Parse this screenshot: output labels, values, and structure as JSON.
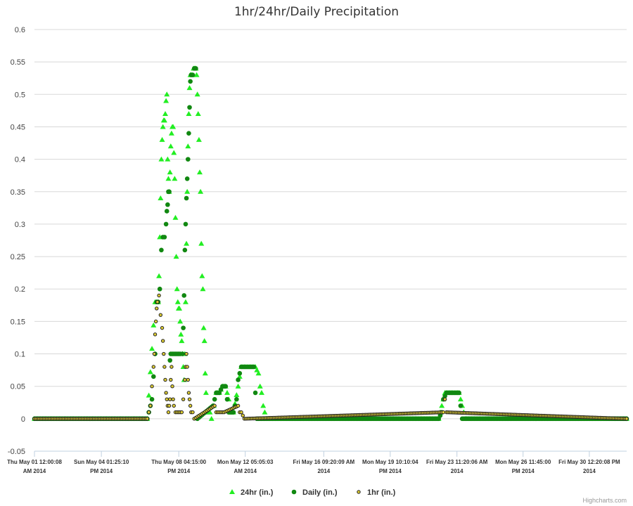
{
  "chart_data": {
    "type": "scatter",
    "title": "1hr/24hr/Daily Precipitation",
    "ylim": [
      -0.05,
      0.6
    ],
    "yticks": [
      "-0.05",
      "0",
      "0.05",
      "0.1",
      "0.15",
      "0.2",
      "0.25",
      "0.3",
      "0.35",
      "0.4",
      "0.45",
      "0.5",
      "0.55",
      "0.6"
    ],
    "xlim": [
      "2014-05-01T00:00:08",
      "2014-06-01T12:00:00"
    ],
    "xticks": [
      {
        "x": "2014-05-01T00:00:08",
        "line1": "Thu May 01 12:00:08",
        "line2": "AM 2014"
      },
      {
        "x": "2014-05-04T13:25:10",
        "line1": "Sun May 04 01:25:10",
        "line2": "PM 2014"
      },
      {
        "x": "2014-05-08T16:15:00",
        "line1": "Thu May 08 04:15:00",
        "line2": "PM 2014"
      },
      {
        "x": "2014-05-12T05:05:03",
        "line1": "Mon May 12 05:05:03",
        "line2": "AM 2014"
      },
      {
        "x": "2014-05-16T09:20:09",
        "line1": "Fri May 16 09:20:09 AM",
        "line2": "2014"
      },
      {
        "x": "2014-05-19T22:10:04",
        "line1": "Mon May 19 10:10:04",
        "line2": "PM 2014"
      },
      {
        "x": "2014-05-23T11:20:06",
        "line1": "Fri May 23 11:20:06 AM",
        "line2": "2014"
      },
      {
        "x": "2014-05-26T23:45:00",
        "line1": "Mon May 26 11:45:00",
        "line2": "PM 2014"
      },
      {
        "x": "2014-05-30T12:20:08",
        "line1": "Fri May 30 12:20:08 PM",
        "line2": "2014"
      }
    ],
    "legend_position": "bottom-center",
    "grid": true,
    "series": [
      {
        "name": "24hr (in.)",
        "marker": "triangle",
        "color": "#22ee22",
        "data": [
          [
            "2014-05-01T00:00",
            0
          ],
          [
            "2014-05-07T00:00",
            0
          ],
          [
            "2014-05-07T10:00",
            0.18
          ],
          [
            "2014-05-07T12:00",
            0.18
          ],
          [
            "2014-05-07T14:00",
            0.18
          ],
          [
            "2014-05-07T15:00",
            0.22
          ],
          [
            "2014-05-07T16:00",
            0.28
          ],
          [
            "2014-05-07T17:00",
            0.34
          ],
          [
            "2014-05-07T18:00",
            0.4
          ],
          [
            "2014-05-07T19:00",
            0.43
          ],
          [
            "2014-05-07T20:00",
            0.45
          ],
          [
            "2014-05-07T21:00",
            0.46
          ],
          [
            "2014-05-07T22:00",
            0.46
          ],
          [
            "2014-05-07T23:00",
            0.47
          ],
          [
            "2014-05-08T00:00",
            0.49
          ],
          [
            "2014-05-08T01:00",
            0.5
          ],
          [
            "2014-05-08T02:00",
            0.4
          ],
          [
            "2014-05-08T03:00",
            0.37
          ],
          [
            "2014-05-08T04:00",
            0.35
          ],
          [
            "2014-05-08T05:00",
            0.38
          ],
          [
            "2014-05-08T06:00",
            0.42
          ],
          [
            "2014-05-08T07:00",
            0.44
          ],
          [
            "2014-05-08T08:00",
            0.45
          ],
          [
            "2014-05-08T09:00",
            0.45
          ],
          [
            "2014-05-08T10:00",
            0.41
          ],
          [
            "2014-05-08T11:00",
            0.37
          ],
          [
            "2014-05-08T12:00",
            0.31
          ],
          [
            "2014-05-08T13:00",
            0.25
          ],
          [
            "2014-05-08T14:00",
            0.2
          ],
          [
            "2014-05-08T15:00",
            0.18
          ],
          [
            "2014-05-08T16:00",
            0.17
          ],
          [
            "2014-05-08T17:00",
            0.17
          ],
          [
            "2014-05-08T18:00",
            0.15
          ],
          [
            "2014-05-08T19:00",
            0.13
          ],
          [
            "2014-05-08T20:00",
            0.12
          ],
          [
            "2014-05-08T21:00",
            0.1
          ],
          [
            "2014-05-08T22:00",
            0.08
          ],
          [
            "2014-05-08T23:00",
            0.06
          ],
          [
            "2014-05-09T00:00",
            0.1
          ],
          [
            "2014-05-09T01:00",
            0.18
          ],
          [
            "2014-05-09T02:00",
            0.27
          ],
          [
            "2014-05-09T03:00",
            0.35
          ],
          [
            "2014-05-09T04:00",
            0.42
          ],
          [
            "2014-05-09T05:00",
            0.47
          ],
          [
            "2014-05-09T06:00",
            0.51
          ],
          [
            "2014-05-09T07:00",
            0.53
          ],
          [
            "2014-05-09T08:00",
            0.53
          ],
          [
            "2014-05-09T09:00",
            0.53
          ],
          [
            "2014-05-09T10:00",
            0.53
          ],
          [
            "2014-05-09T11:00",
            0.54
          ],
          [
            "2014-05-09T12:00",
            0.54
          ],
          [
            "2014-05-09T13:00",
            0.54
          ],
          [
            "2014-05-09T14:00",
            0.54
          ],
          [
            "2014-05-09T15:00",
            0.53
          ],
          [
            "2014-05-09T16:00",
            0.5
          ],
          [
            "2014-05-09T17:00",
            0.47
          ],
          [
            "2014-05-09T18:00",
            0.43
          ],
          [
            "2014-05-09T19:00",
            0.38
          ],
          [
            "2014-05-09T20:00",
            0.35
          ],
          [
            "2014-05-09T21:00",
            0.27
          ],
          [
            "2014-05-09T22:00",
            0.22
          ],
          [
            "2014-05-09T23:00",
            0.2
          ],
          [
            "2014-05-10T00:00",
            0.14
          ],
          [
            "2014-05-10T01:00",
            0.12
          ],
          [
            "2014-05-10T02:00",
            0.07
          ],
          [
            "2014-05-10T03:00",
            0.04
          ],
          [
            "2014-05-10T04:00",
            0.01
          ],
          [
            "2014-05-10T06:00",
            0.01
          ],
          [
            "2014-05-10T08:00",
            0.01
          ],
          [
            "2014-05-10T10:00",
            0.0
          ],
          [
            "2014-05-10T13:00",
            0.02
          ],
          [
            "2014-05-10T16:00",
            0.04
          ],
          [
            "2014-05-10T20:00",
            0.04
          ],
          [
            "2014-05-11T00:00",
            0.05
          ],
          [
            "2014-05-11T04:00",
            0.05
          ],
          [
            "2014-05-11T08:00",
            0.03
          ],
          [
            "2014-05-11T10:00",
            0.01
          ],
          [
            "2014-05-11T14:00",
            0.01
          ],
          [
            "2014-05-11T20:00",
            0.05
          ],
          [
            "2014-05-12T00:00",
            0.08
          ],
          [
            "2014-05-12T06:00",
            0.08
          ],
          [
            "2014-05-12T12:00",
            0.08
          ],
          [
            "2014-05-12T18:00",
            0.08
          ],
          [
            "2014-05-12T22:00",
            0.07
          ],
          [
            "2014-05-13T00:00",
            0.05
          ],
          [
            "2014-05-13T02:00",
            0.04
          ],
          [
            "2014-05-13T04:00",
            0.02
          ],
          [
            "2014-05-13T08:00",
            0
          ],
          [
            "2014-05-22T12:00",
            0
          ],
          [
            "2014-05-22T18:00",
            0.03
          ],
          [
            "2014-05-22T20:00",
            0.04
          ],
          [
            "2014-05-23T02:00",
            0.04
          ],
          [
            "2014-05-23T08:00",
            0.04
          ],
          [
            "2014-05-23T14:00",
            0.04
          ],
          [
            "2014-05-23T16:00",
            0.03
          ],
          [
            "2014-05-23T18:00",
            0.02
          ],
          [
            "2014-05-23T20:00",
            0.01
          ],
          [
            "2014-05-23T22:00",
            0
          ],
          [
            "2014-06-01T12:00",
            0
          ]
        ]
      },
      {
        "name": "Daily (in.)",
        "marker": "circle",
        "color": "#118811",
        "data": [
          [
            "2014-05-01T00:00",
            0
          ],
          [
            "2014-05-07T00:00",
            0
          ],
          [
            "2014-05-07T06:00",
            0.03
          ],
          [
            "2014-05-07T10:00",
            0.1
          ],
          [
            "2014-05-07T12:00",
            0.18
          ],
          [
            "2014-05-07T14:00",
            0.18
          ],
          [
            "2014-05-07T16:00",
            0.2
          ],
          [
            "2014-05-07T18:00",
            0.26
          ],
          [
            "2014-05-07T20:00",
            0.28
          ],
          [
            "2014-05-07T22:00",
            0.28
          ],
          [
            "2014-05-08T00:00",
            0.3
          ],
          [
            "2014-05-08T01:00",
            0.32
          ],
          [
            "2014-05-08T02:00",
            0.33
          ],
          [
            "2014-05-08T03:00",
            0.35
          ],
          [
            "2014-05-08T04:00",
            0.35
          ],
          [
            "2014-05-08T05:00",
            0.09
          ],
          [
            "2014-05-08T06:00",
            0.1
          ],
          [
            "2014-05-08T10:00",
            0.1
          ],
          [
            "2014-05-08T14:00",
            0.1
          ],
          [
            "2014-05-08T18:00",
            0.1
          ],
          [
            "2014-05-08T21:00",
            0.1
          ],
          [
            "2014-05-08T22:00",
            0.14
          ],
          [
            "2014-05-08T23:00",
            0.19
          ],
          [
            "2014-05-09T00:00",
            0.26
          ],
          [
            "2014-05-09T01:00",
            0.3
          ],
          [
            "2014-05-09T02:00",
            0.34
          ],
          [
            "2014-05-09T03:00",
            0.37
          ],
          [
            "2014-05-09T04:00",
            0.4
          ],
          [
            "2014-05-09T05:00",
            0.44
          ],
          [
            "2014-05-09T06:00",
            0.48
          ],
          [
            "2014-05-09T07:00",
            0.52
          ],
          [
            "2014-05-09T08:00",
            0.53
          ],
          [
            "2014-05-09T10:00",
            0.53
          ],
          [
            "2014-05-09T12:00",
            0.54
          ],
          [
            "2014-05-09T14:00",
            0.54
          ],
          [
            "2014-05-09T16:00",
            0.0
          ],
          [
            "2014-05-10T12:00",
            0.02
          ],
          [
            "2014-05-10T16:00",
            0.04
          ],
          [
            "2014-05-10T20:00",
            0.04
          ],
          [
            "2014-05-11T00:00",
            0.05
          ],
          [
            "2014-05-11T04:00",
            0.05
          ],
          [
            "2014-05-11T08:00",
            0.01
          ],
          [
            "2014-05-11T14:00",
            0.01
          ],
          [
            "2014-05-11T18:00",
            0.03
          ],
          [
            "2014-05-11T20:00",
            0.06
          ],
          [
            "2014-05-12T00:00",
            0.08
          ],
          [
            "2014-05-12T06:00",
            0.08
          ],
          [
            "2014-05-12T12:00",
            0.08
          ],
          [
            "2014-05-12T16:00",
            0.08
          ],
          [
            "2014-05-12T20:00",
            0
          ],
          [
            "2014-05-22T12:00",
            0
          ],
          [
            "2014-05-22T16:00",
            0.01
          ],
          [
            "2014-05-22T18:00",
            0.03
          ],
          [
            "2014-05-22T22:00",
            0.04
          ],
          [
            "2014-05-23T04:00",
            0.04
          ],
          [
            "2014-05-23T10:00",
            0.04
          ],
          [
            "2014-05-23T14:00",
            0.04
          ],
          [
            "2014-05-23T18:00",
            0
          ],
          [
            "2014-06-01T12:00",
            0
          ]
        ]
      },
      {
        "name": "1hr (in.)",
        "marker": "circle-small",
        "color": "#ddcc33",
        "data": [
          [
            "2014-05-01T00:00",
            0
          ],
          [
            "2014-05-07T00:00",
            0
          ],
          [
            "2014-05-07T04:00",
            0.02
          ],
          [
            "2014-05-07T06:00",
            0.05
          ],
          [
            "2014-05-07T08:00",
            0.08
          ],
          [
            "2014-05-07T09:00",
            0.1
          ],
          [
            "2014-05-07T10:00",
            0.13
          ],
          [
            "2014-05-07T11:00",
            0.15
          ],
          [
            "2014-05-07T12:00",
            0.17
          ],
          [
            "2014-05-07T13:00",
            0.18
          ],
          [
            "2014-05-07T15:00",
            0.19
          ],
          [
            "2014-05-07T17:00",
            0.16
          ],
          [
            "2014-05-07T19:00",
            0.14
          ],
          [
            "2014-05-07T20:00",
            0.12
          ],
          [
            "2014-05-07T21:00",
            0.1
          ],
          [
            "2014-05-07T22:00",
            0.08
          ],
          [
            "2014-05-07T23:00",
            0.06
          ],
          [
            "2014-05-08T00:00",
            0.04
          ],
          [
            "2014-05-08T01:00",
            0.03
          ],
          [
            "2014-05-08T02:00",
            0.02
          ],
          [
            "2014-05-08T03:00",
            0.01
          ],
          [
            "2014-05-08T04:00",
            0.02
          ],
          [
            "2014-05-08T05:00",
            0.03
          ],
          [
            "2014-05-08T06:00",
            0.06
          ],
          [
            "2014-05-08T07:00",
            0.08
          ],
          [
            "2014-05-08T08:00",
            0.05
          ],
          [
            "2014-05-08T09:00",
            0.03
          ],
          [
            "2014-05-08T10:00",
            0.02
          ],
          [
            "2014-05-08T12:00",
            0.01
          ],
          [
            "2014-05-08T20:00",
            0.01
          ],
          [
            "2014-05-08T22:00",
            0.03
          ],
          [
            "2014-05-09T00:00",
            0.06
          ],
          [
            "2014-05-09T01:00",
            0.08
          ],
          [
            "2014-05-09T02:00",
            0.1
          ],
          [
            "2014-05-09T03:00",
            0.08
          ],
          [
            "2014-05-09T04:00",
            0.06
          ],
          [
            "2014-05-09T05:00",
            0.04
          ],
          [
            "2014-05-09T06:00",
            0.03
          ],
          [
            "2014-05-09T07:00",
            0.02
          ],
          [
            "2014-05-09T08:00",
            0.01
          ],
          [
            "2014-05-09T10:00",
            0.01
          ],
          [
            "2014-05-09T12:00",
            0.0
          ],
          [
            "2014-05-10T14:00",
            0.02
          ],
          [
            "2014-05-10T16:00",
            0.01
          ],
          [
            "2014-05-11T02:00",
            0.01
          ],
          [
            "2014-05-11T20:00",
            0.02
          ],
          [
            "2014-05-11T22:00",
            0.01
          ],
          [
            "2014-05-12T00:00",
            0.01
          ],
          [
            "2014-05-12T04:00",
            0.0
          ],
          [
            "2014-05-22T18:00",
            0.01
          ],
          [
            "2014-05-22T20:00",
            0.03
          ],
          [
            "2014-05-22T22:00",
            0.01
          ],
          [
            "2014-06-01T12:00",
            0
          ]
        ]
      }
    ],
    "credit": "Highcharts.com"
  }
}
